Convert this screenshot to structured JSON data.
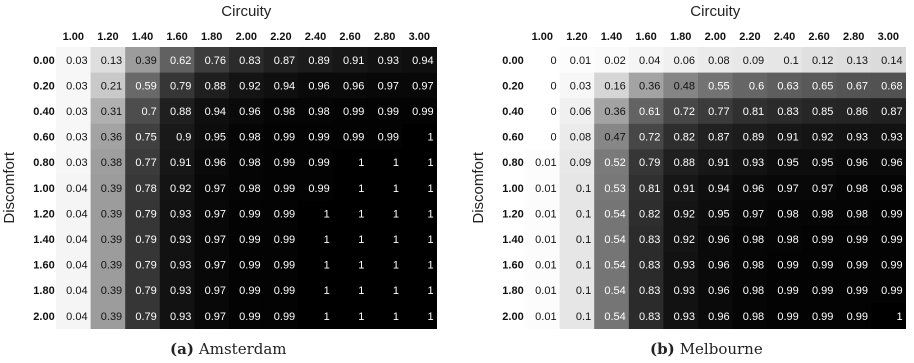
{
  "chart_data": [
    {
      "type": "heatmap",
      "caption_tag": "(a)",
      "caption_text": "Amsterdam",
      "xlabel": "Circuity",
      "ylabel": "Discomfort",
      "x": [
        "1.00",
        "1.20",
        "1.40",
        "1.60",
        "1.80",
        "2.00",
        "2.20",
        "2.40",
        "2.60",
        "2.80",
        "3.00"
      ],
      "y": [
        "0.00",
        "0.20",
        "0.40",
        "0.60",
        "0.80",
        "1.00",
        "1.20",
        "1.40",
        "1.60",
        "1.80",
        "2.00"
      ],
      "values": [
        [
          0.03,
          0.13,
          0.39,
          0.62,
          0.76,
          0.83,
          0.87,
          0.89,
          0.91,
          0.93,
          0.94
        ],
        [
          0.03,
          0.21,
          0.59,
          0.79,
          0.88,
          0.92,
          0.94,
          0.96,
          0.96,
          0.97,
          0.97
        ],
        [
          0.03,
          0.31,
          0.7,
          0.88,
          0.94,
          0.96,
          0.98,
          0.98,
          0.99,
          0.99,
          0.99
        ],
        [
          0.03,
          0.36,
          0.75,
          0.9,
          0.95,
          0.98,
          0.99,
          0.99,
          0.99,
          0.99,
          1
        ],
        [
          0.03,
          0.38,
          0.77,
          0.91,
          0.96,
          0.98,
          0.99,
          0.99,
          1,
          1,
          1
        ],
        [
          0.04,
          0.39,
          0.78,
          0.92,
          0.97,
          0.98,
          0.99,
          0.99,
          1,
          1,
          1
        ],
        [
          0.04,
          0.39,
          0.79,
          0.93,
          0.97,
          0.99,
          0.99,
          1,
          1,
          1,
          1
        ],
        [
          0.04,
          0.39,
          0.79,
          0.93,
          0.97,
          0.99,
          0.99,
          1,
          1,
          1,
          1
        ],
        [
          0.04,
          0.39,
          0.79,
          0.93,
          0.97,
          0.99,
          0.99,
          1,
          1,
          1,
          1
        ],
        [
          0.04,
          0.39,
          0.79,
          0.93,
          0.97,
          0.99,
          0.99,
          1,
          1,
          1,
          1
        ],
        [
          0.04,
          0.39,
          0.79,
          0.93,
          0.97,
          0.99,
          0.99,
          1,
          1,
          1,
          1
        ]
      ],
      "labels": [
        [
          "0.03",
          "0.13",
          "0.39",
          "0.62",
          "0.76",
          "0.83",
          "0.87",
          "0.89",
          "0.91",
          "0.93",
          "0.94"
        ],
        [
          "0.03",
          "0.21",
          "0.59",
          "0.79",
          "0.88",
          "0.92",
          "0.94",
          "0.96",
          "0.96",
          "0.97",
          "0.97"
        ],
        [
          "0.03",
          "0.31",
          "0.7",
          "0.88",
          "0.94",
          "0.96",
          "0.98",
          "0.98",
          "0.99",
          "0.99",
          "0.99"
        ],
        [
          "0.03",
          "0.36",
          "0.75",
          "0.9",
          "0.95",
          "0.98",
          "0.99",
          "0.99",
          "0.99",
          "0.99",
          "1"
        ],
        [
          "0.03",
          "0.38",
          "0.77",
          "0.91",
          "0.96",
          "0.98",
          "0.99",
          "0.99",
          "1",
          "1",
          "1"
        ],
        [
          "0.04",
          "0.39",
          "0.78",
          "0.92",
          "0.97",
          "0.98",
          "0.99",
          "0.99",
          "1",
          "1",
          "1"
        ],
        [
          "0.04",
          "0.39",
          "0.79",
          "0.93",
          "0.97",
          "0.99",
          "0.99",
          "1",
          "1",
          "1",
          "1"
        ],
        [
          "0.04",
          "0.39",
          "0.79",
          "0.93",
          "0.97",
          "0.99",
          "0.99",
          "1",
          "1",
          "1",
          "1"
        ],
        [
          "0.04",
          "0.39",
          "0.79",
          "0.93",
          "0.97",
          "0.99",
          "0.99",
          "1",
          "1",
          "1",
          "1"
        ],
        [
          "0.04",
          "0.39",
          "0.79",
          "0.93",
          "0.97",
          "0.99",
          "0.99",
          "1",
          "1",
          "1",
          "1"
        ],
        [
          "0.04",
          "0.39",
          "0.79",
          "0.93",
          "0.97",
          "0.99",
          "0.99",
          "1",
          "1",
          "1",
          "1"
        ]
      ],
      "colormap": "grayscale, 0 = white, 1 = black",
      "legend": "none"
    },
    {
      "type": "heatmap",
      "caption_tag": "(b)",
      "caption_text": "Melbourne",
      "xlabel": "Circuity",
      "ylabel": "Discomfort",
      "x": [
        "1.00",
        "1.20",
        "1.40",
        "1.60",
        "1.80",
        "2.00",
        "2.20",
        "2.40",
        "2.60",
        "2.80",
        "3.00"
      ],
      "y": [
        "0.00",
        "0.20",
        "0.40",
        "0.60",
        "0.80",
        "1.00",
        "1.20",
        "1.40",
        "1.60",
        "1.80",
        "2.00"
      ],
      "values": [
        [
          0,
          0.01,
          0.02,
          0.04,
          0.06,
          0.08,
          0.09,
          0.1,
          0.12,
          0.13,
          0.14
        ],
        [
          0,
          0.03,
          0.16,
          0.36,
          0.48,
          0.55,
          0.6,
          0.63,
          0.65,
          0.67,
          0.68
        ],
        [
          0,
          0.06,
          0.36,
          0.61,
          0.72,
          0.77,
          0.81,
          0.83,
          0.85,
          0.86,
          0.87
        ],
        [
          0,
          0.08,
          0.47,
          0.72,
          0.82,
          0.87,
          0.89,
          0.91,
          0.92,
          0.93,
          0.93
        ],
        [
          0.01,
          0.09,
          0.52,
          0.79,
          0.88,
          0.91,
          0.93,
          0.95,
          0.95,
          0.96,
          0.96
        ],
        [
          0.01,
          0.1,
          0.53,
          0.81,
          0.91,
          0.94,
          0.96,
          0.97,
          0.97,
          0.98,
          0.98
        ],
        [
          0.01,
          0.1,
          0.54,
          0.82,
          0.92,
          0.95,
          0.97,
          0.98,
          0.98,
          0.98,
          0.99
        ],
        [
          0.01,
          0.1,
          0.54,
          0.83,
          0.92,
          0.96,
          0.98,
          0.98,
          0.99,
          0.99,
          0.99
        ],
        [
          0.01,
          0.1,
          0.54,
          0.83,
          0.93,
          0.96,
          0.98,
          0.99,
          0.99,
          0.99,
          0.99
        ],
        [
          0.01,
          0.1,
          0.54,
          0.83,
          0.93,
          0.96,
          0.98,
          0.99,
          0.99,
          0.99,
          0.99
        ],
        [
          0.01,
          0.1,
          0.54,
          0.83,
          0.93,
          0.96,
          0.98,
          0.99,
          0.99,
          0.99,
          1
        ]
      ],
      "labels": [
        [
          "0",
          "0.01",
          "0.02",
          "0.04",
          "0.06",
          "0.08",
          "0.09",
          "0.1",
          "0.12",
          "0.13",
          "0.14"
        ],
        [
          "0",
          "0.03",
          "0.16",
          "0.36",
          "0.48",
          "0.55",
          "0.6",
          "0.63",
          "0.65",
          "0.67",
          "0.68"
        ],
        [
          "0",
          "0.06",
          "0.36",
          "0.61",
          "0.72",
          "0.77",
          "0.81",
          "0.83",
          "0.85",
          "0.86",
          "0.87"
        ],
        [
          "0",
          "0.08",
          "0.47",
          "0.72",
          "0.82",
          "0.87",
          "0.89",
          "0.91",
          "0.92",
          "0.93",
          "0.93"
        ],
        [
          "0.01",
          "0.09",
          "0.52",
          "0.79",
          "0.88",
          "0.91",
          "0.93",
          "0.95",
          "0.95",
          "0.96",
          "0.96"
        ],
        [
          "0.01",
          "0.1",
          "0.53",
          "0.81",
          "0.91",
          "0.94",
          "0.96",
          "0.97",
          "0.97",
          "0.98",
          "0.98"
        ],
        [
          "0.01",
          "0.1",
          "0.54",
          "0.82",
          "0.92",
          "0.95",
          "0.97",
          "0.98",
          "0.98",
          "0.98",
          "0.99"
        ],
        [
          "0.01",
          "0.1",
          "0.54",
          "0.83",
          "0.92",
          "0.96",
          "0.98",
          "0.98",
          "0.99",
          "0.99",
          "0.99"
        ],
        [
          "0.01",
          "0.1",
          "0.54",
          "0.83",
          "0.93",
          "0.96",
          "0.98",
          "0.99",
          "0.99",
          "0.99",
          "0.99"
        ],
        [
          "0.01",
          "0.1",
          "0.54",
          "0.83",
          "0.93",
          "0.96",
          "0.98",
          "0.99",
          "0.99",
          "0.99",
          "0.99"
        ],
        [
          "0.01",
          "0.1",
          "0.54",
          "0.83",
          "0.93",
          "0.96",
          "0.98",
          "0.99",
          "0.99",
          "0.99",
          "1"
        ]
      ],
      "colormap": "grayscale, 0 = white, 1 = black",
      "legend": "none"
    }
  ]
}
